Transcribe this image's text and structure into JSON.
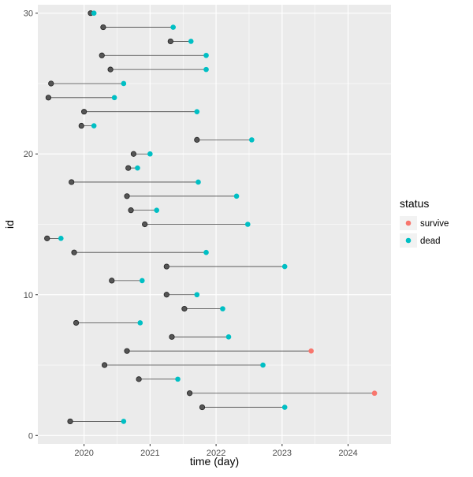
{
  "chart_data": {
    "type": "scatter",
    "title": "",
    "xlabel": "time (day)",
    "ylabel": "id",
    "xlim": [
      2019.3,
      2024.65
    ],
    "ylim": [
      -0.6,
      30.6
    ],
    "x_ticks": [
      2020,
      2021,
      2022,
      2023,
      2024
    ],
    "x_tick_labels": [
      "2020",
      "2021",
      "2022",
      "2023",
      "2024"
    ],
    "y_ticks": [
      0,
      10,
      20,
      30
    ],
    "y_tick_labels": [
      "0",
      "10",
      "20",
      "30"
    ],
    "grid": true,
    "panel_background": "#EBEBEB",
    "start_point_color": "#555555",
    "segment_color": "#444444",
    "legend": {
      "title": "status",
      "placement": "right",
      "entries": [
        {
          "label": "survive",
          "color": "#F8766D"
        },
        {
          "label": "dead",
          "color": "#00BFC4"
        }
      ]
    },
    "records": [
      {
        "id": 1,
        "start": 2019.79,
        "end": 2020.6,
        "status": "dead"
      },
      {
        "id": 2,
        "start": 2021.79,
        "end": 2023.04,
        "status": "dead"
      },
      {
        "id": 3,
        "start": 2021.6,
        "end": 2024.4,
        "status": "survive"
      },
      {
        "id": 4,
        "start": 2020.83,
        "end": 2021.42,
        "status": "dead"
      },
      {
        "id": 5,
        "start": 2020.31,
        "end": 2022.71,
        "status": "dead"
      },
      {
        "id": 6,
        "start": 2020.65,
        "end": 2023.44,
        "status": "survive"
      },
      {
        "id": 7,
        "start": 2021.33,
        "end": 2022.19,
        "status": "dead"
      },
      {
        "id": 8,
        "start": 2019.88,
        "end": 2020.85,
        "status": "dead"
      },
      {
        "id": 9,
        "start": 2021.52,
        "end": 2022.1,
        "status": "dead"
      },
      {
        "id": 10,
        "start": 2021.25,
        "end": 2021.71,
        "status": "dead"
      },
      {
        "id": 11,
        "start": 2020.42,
        "end": 2020.88,
        "status": "dead"
      },
      {
        "id": 12,
        "start": 2021.25,
        "end": 2023.04,
        "status": "dead"
      },
      {
        "id": 13,
        "start": 2019.85,
        "end": 2021.85,
        "status": "dead"
      },
      {
        "id": 14,
        "start": 2019.44,
        "end": 2019.65,
        "status": "dead"
      },
      {
        "id": 15,
        "start": 2020.92,
        "end": 2022.48,
        "status": "dead"
      },
      {
        "id": 16,
        "start": 2020.71,
        "end": 2021.1,
        "status": "dead"
      },
      {
        "id": 17,
        "start": 2020.65,
        "end": 2022.31,
        "status": "dead"
      },
      {
        "id": 18,
        "start": 2019.81,
        "end": 2021.73,
        "status": "dead"
      },
      {
        "id": 19,
        "start": 2020.67,
        "end": 2020.81,
        "status": "dead"
      },
      {
        "id": 20,
        "start": 2020.75,
        "end": 2021.0,
        "status": "dead"
      },
      {
        "id": 21,
        "start": 2021.71,
        "end": 2022.54,
        "status": "dead"
      },
      {
        "id": 22,
        "start": 2019.96,
        "end": 2020.15,
        "status": "dead"
      },
      {
        "id": 23,
        "start": 2020.0,
        "end": 2021.71,
        "status": "dead"
      },
      {
        "id": 24,
        "start": 2019.46,
        "end": 2020.46,
        "status": "dead"
      },
      {
        "id": 25,
        "start": 2019.5,
        "end": 2020.6,
        "status": "dead"
      },
      {
        "id": 26,
        "start": 2020.4,
        "end": 2021.85,
        "status": "dead"
      },
      {
        "id": 27,
        "start": 2020.27,
        "end": 2021.85,
        "status": "dead"
      },
      {
        "id": 28,
        "start": 2021.31,
        "end": 2021.62,
        "status": "dead"
      },
      {
        "id": 29,
        "start": 2020.29,
        "end": 2021.35,
        "status": "dead"
      },
      {
        "id": 30,
        "start": 2020.1,
        "end": 2020.15,
        "status": "dead"
      }
    ]
  }
}
